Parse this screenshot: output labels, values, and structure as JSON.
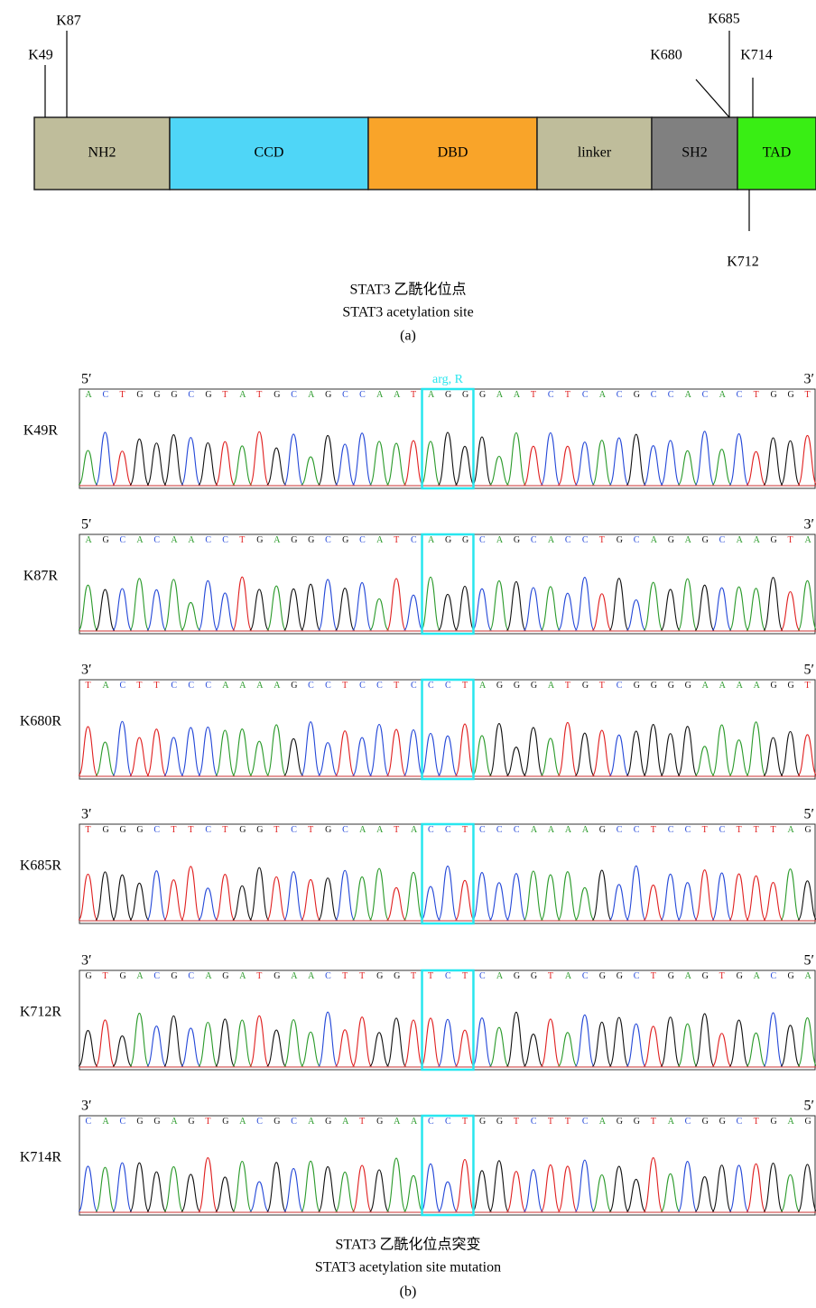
{
  "panel_a": {
    "domains": [
      {
        "label": "NH2",
        "color": "#bfbd9b"
      },
      {
        "label": "CCD",
        "color": "#4fd6f7"
      },
      {
        "label": "DBD",
        "color": "#f9a429"
      },
      {
        "label": "linker",
        "color": "#bfbd9b"
      },
      {
        "label": "SH2",
        "color": "#808080"
      },
      {
        "label": "TAD",
        "color": "#39ee14"
      }
    ],
    "sites": [
      "K49",
      "K87",
      "K680",
      "K685",
      "K714",
      "K712"
    ],
    "caption_zh": "STAT3 乙酰化位点",
    "caption_en": "STAT3 acetylation site",
    "label": "(a)"
  },
  "panel_b": {
    "annotation": "arg, R",
    "tracks": [
      {
        "name": "K49R",
        "left_end": "5′",
        "right_end": "3′",
        "sequence": "ACTGGGCGTATGCAGCCAATAGGGAATCTCACGCCACACTGGT"
      },
      {
        "name": "K87R",
        "left_end": "5′",
        "right_end": "3′",
        "sequence": "AGCACAACCTGAGGCGCATCAGGCAGCACCTGCAGAGCAAGTA"
      },
      {
        "name": "K680R",
        "left_end": "3′",
        "right_end": "5′",
        "sequence": "TACTTCCCAAAAGCCTCCTCCCTAGGGATGTCGGGGAAAAGGT"
      },
      {
        "name": "K685R",
        "left_end": "3′",
        "right_end": "5′",
        "sequence": "TGGGCTTCTGGTCTGCAATACCTCCCAAAAGCCTCCTCTTTAG"
      },
      {
        "name": "K712R",
        "left_end": "3′",
        "right_end": "5′",
        "sequence": "GTGACGCAGATGAACTTGGTTCTCAGGTACGGCTGAGTGACGA"
      },
      {
        "name": "K714R",
        "left_end": "3′",
        "right_end": "5′",
        "sequence": "CACGGAGTGACGCAGATGAACCTGGTCTTCAGGTACGGCTGAG"
      }
    ],
    "caption_zh": "STAT3 乙酰化位点突变",
    "caption_en": "STAT3 acetylation site mutation",
    "label": "(b)"
  }
}
